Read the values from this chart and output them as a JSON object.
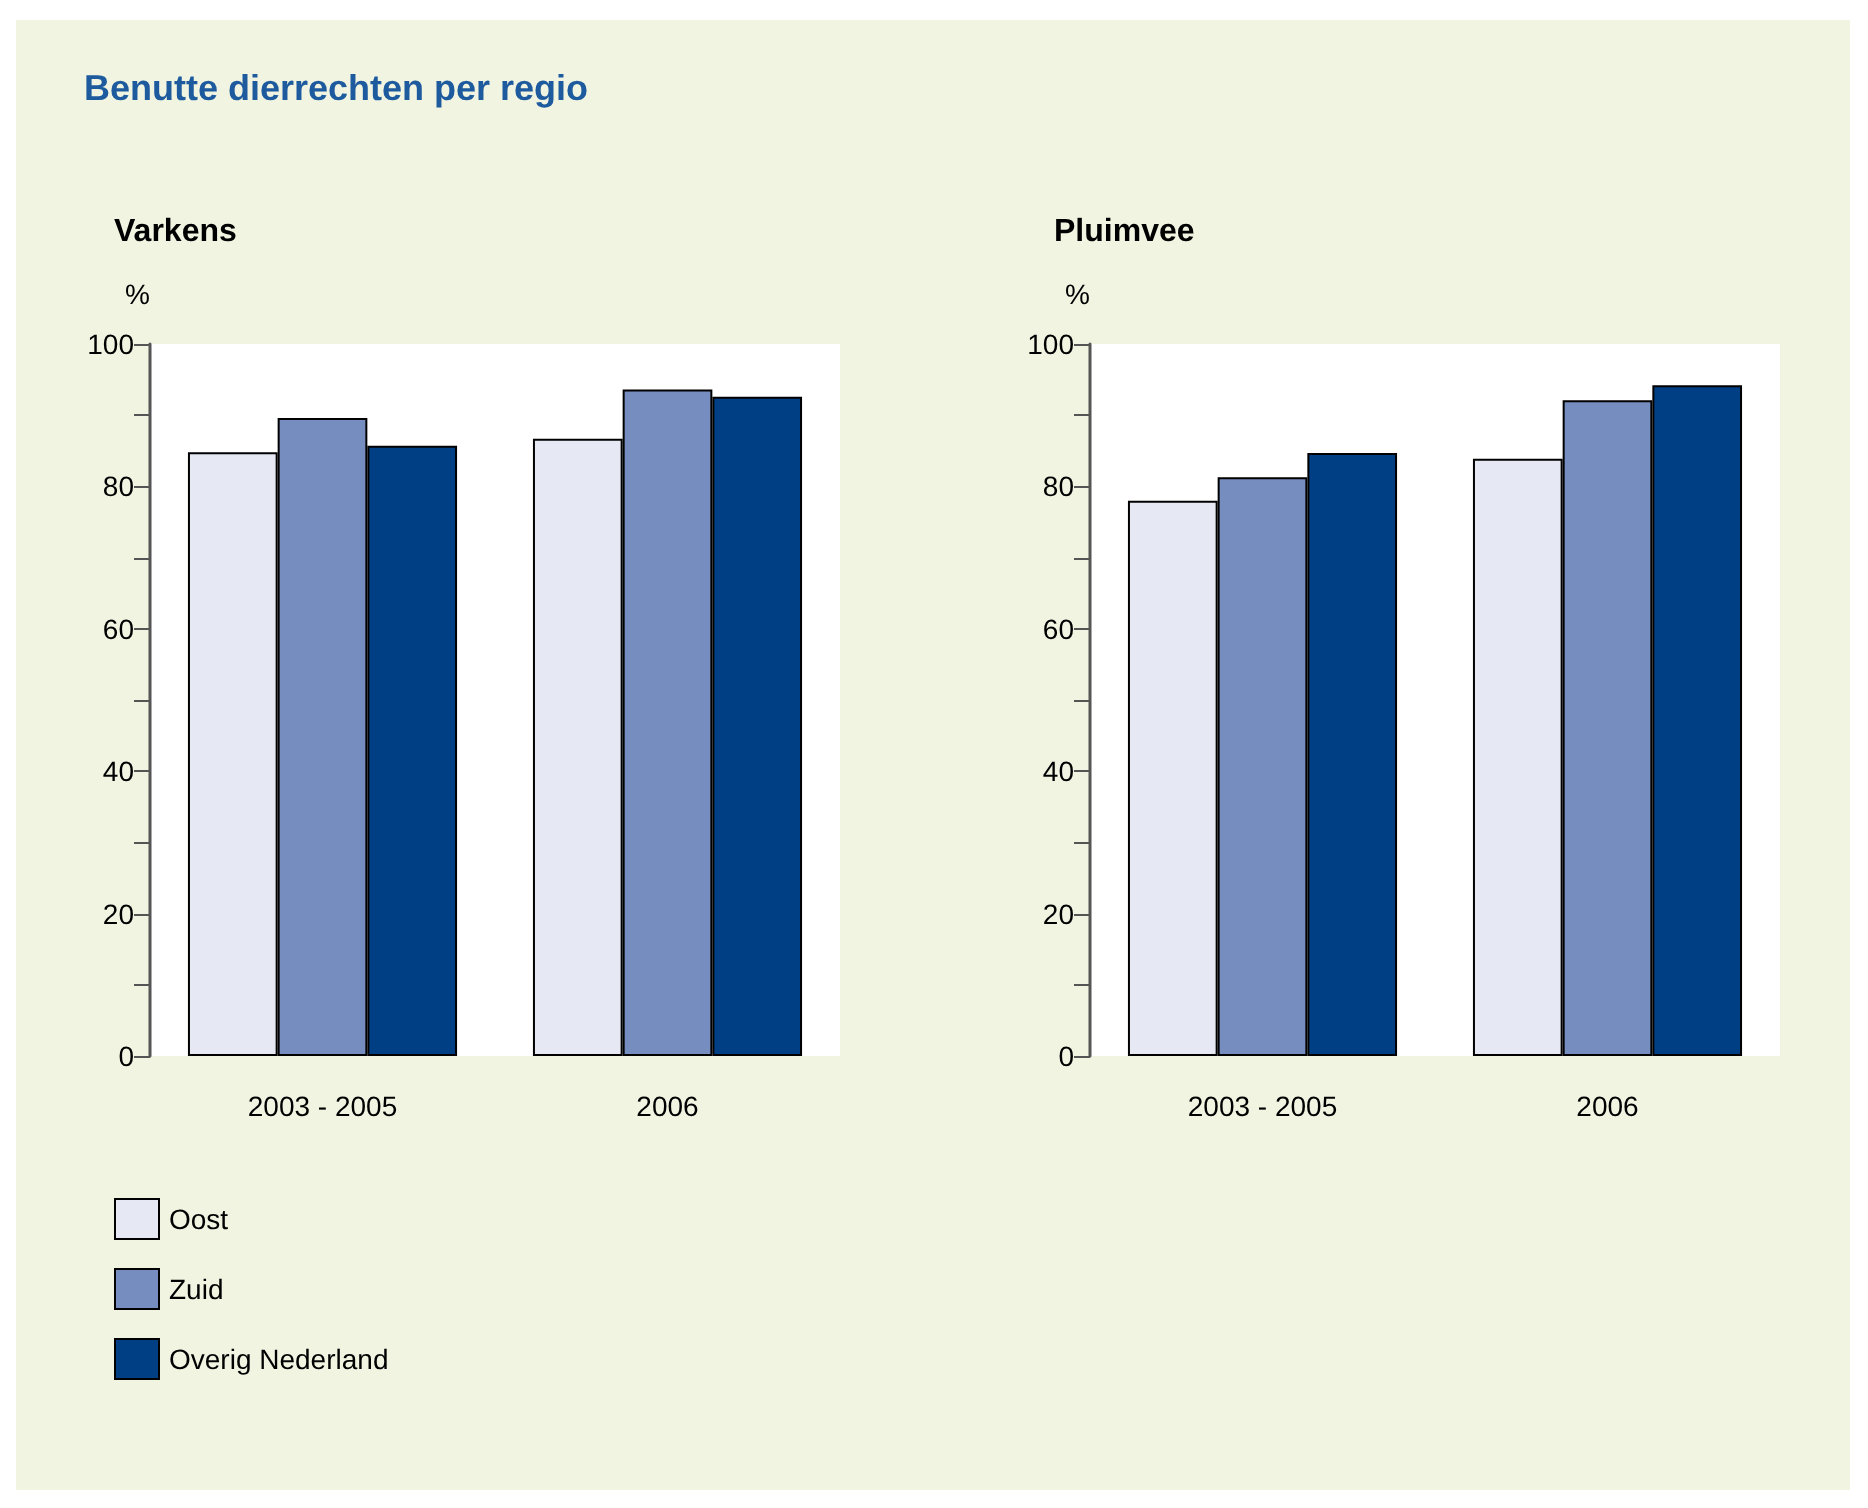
{
  "chart_data": [
    {
      "type": "bar",
      "title": "Varkens",
      "annotations": [
        "Benutte dierrechten per regio"
      ],
      "ylabel": "%",
      "categories": [
        "2003 - 2005",
        "2006"
      ],
      "series": [
        {
          "name": "Oost",
          "color": "#e6e9f3",
          "values": [
            84.8,
            86.7
          ]
        },
        {
          "name": "Zuid",
          "color": "#768dc0",
          "values": [
            89.6,
            93.6
          ]
        },
        {
          "name": "Overig Nederland",
          "color": "#003f84",
          "values": [
            85.7,
            92.6
          ]
        }
      ],
      "ylim": [
        0,
        100
      ],
      "yticks": [
        0,
        {
          "value": 10,
          "label": null
        },
        20,
        {
          "value": 30,
          "label": null
        },
        40,
        {
          "value": 50,
          "label": null
        },
        60,
        {
          "value": 70,
          "label": null
        },
        80,
        {
          "value": 90,
          "label": null
        },
        100
      ],
      "grid": false,
      "legend": "bottom left"
    },
    {
      "type": "bar",
      "title": "Pluimvee",
      "ylabel": "%",
      "categories": [
        "2003 - 2005",
        "2006"
      ],
      "series": [
        {
          "color": "#e6e9f3",
          "values": [
            78.0,
            83.9
          ]
        },
        {
          "color": "#768dc0",
          "values": [
            81.3,
            92.1
          ]
        },
        {
          "color": "#003f84",
          "values": [
            84.7,
            94.2
          ]
        }
      ],
      "ylim": [
        0,
        100
      ],
      "yticks": [
        0,
        {
          "value": 10,
          "label": null
        },
        20,
        {
          "value": 30,
          "label": null
        },
        40,
        {
          "value": 50,
          "label": null
        },
        60,
        {
          "value": 70,
          "label": null
        },
        80,
        {
          "value": 90,
          "label": null
        },
        100
      ],
      "grid": false,
      "legend": false
    }
  ]
}
